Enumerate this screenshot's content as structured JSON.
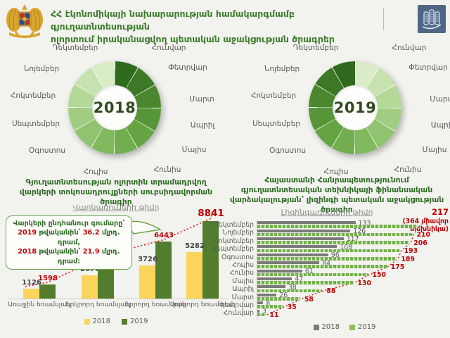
{
  "header": {
    "title_line1": "ՀՀ էկոնոմիկայի նախարարության համակարգմամբ գյուղատնտեսության",
    "title_line2": "ոլորտում իրականացվող պետական աջակցության ծրագրեր",
    "coat_of_arms_icon": "armenia-coat-of-arms",
    "logo_icon": "ministry-building-logo"
  },
  "months": [
    "Հունվար",
    "Փետրվար",
    "Մարտ",
    "Ապրիլ",
    "Մայիս",
    "Հունիս",
    "Հուլիս",
    "Օգոստոս",
    "Սեպտեմբեր",
    "Հոկտեմբեր",
    "Նոյեմբեր",
    "Դեկտեմբեր"
  ],
  "donuts": [
    {
      "year": "2018",
      "gradient": "dark-to-light"
    },
    {
      "year": "2019",
      "gradient": "light-to-dark"
    }
  ],
  "left_section": {
    "caption": "Գյուղատնտեսության ոլորտին տրամադրվող վարկերի տոկոսադրույքների սուբսիդավորման ծրագիր",
    "chart_title": "Վարկառուների թիվը",
    "callout": {
      "title": "Վարկերի ընդհանուր գումարը՝",
      "rows": [
        {
          "year": "2019",
          "mid": " թվականին՝ ",
          "value": "36.2",
          "tail": " մլրդ. դրամ,"
        },
        {
          "year": "2018",
          "mid": " թվականին՝ ",
          "value": "21.9",
          "tail": " մլրդ. դրամ:"
        }
      ]
    }
  },
  "right_section": {
    "caption": "Հայաստանի Հանրապետությունում գյուղատնտեսական տեխնիկայի ֆինանսական վարձակալության՝ լիզինգի պետական աջակցության ծրագիր",
    "chart_title": "Լիզինգառուների թիվը",
    "annotation_number": "217",
    "annotation_line1": "(364 միավոր",
    "annotation_line2": "տեխնիկա)"
  },
  "colors": {
    "accent_green": "#3c7d2b",
    "red": "#c00000",
    "bar_yellow": "#fbd45a",
    "bar_dark_green": "#527d2e",
    "bar_gray": "#7b7b7b",
    "bar_light_green": "#8fbf59",
    "donut_palette": [
      "#2f6a1d",
      "#3c7826",
      "#4a872f",
      "#579539",
      "#65a343",
      "#72ae4f",
      "#81b95e",
      "#90c370",
      "#a1cd83",
      "#b3d898",
      "#c6e2ae",
      "#d9ecc6"
    ]
  },
  "chart_data": [
    {
      "type": "pie",
      "title": "2018",
      "subtype": "calendar-donut",
      "categories": [
        "Հունվար",
        "Փետրվար",
        "Մարտ",
        "Ապրիլ",
        "Մայիս",
        "Հունիս",
        "Հուլիս",
        "Օգոստոս",
        "Սեպտեմբեր",
        "Հոկտեմբեր",
        "Նոյեմբեր",
        "Դեկտեմբեր"
      ],
      "values": [
        1,
        1,
        1,
        1,
        1,
        1,
        1,
        1,
        1,
        1,
        1,
        1
      ],
      "note": "12 equal segments, green shades dark (Jan) to light (Dec), no numeric labels shown"
    },
    {
      "type": "pie",
      "title": "2019",
      "subtype": "calendar-donut",
      "categories": [
        "Հունվար",
        "Փետրվար",
        "Մարտ",
        "Ապրիլ",
        "Մայիս",
        "Հունիս",
        "Հուլիս",
        "Օգոստոս",
        "Սեպտեմբեր",
        "Հոկտեմբեր",
        "Նոյեմբեր",
        "Դեկտեմբեր"
      ],
      "values": [
        1,
        1,
        1,
        1,
        1,
        1,
        1,
        1,
        1,
        1,
        1,
        1
      ],
      "note": "12 equal segments, green shades light (Jan) to dark (Dec), no numeric labels shown"
    },
    {
      "type": "bar",
      "title": "Վարկառուների թիվը",
      "categories": [
        "Առաջին եռամսյակ",
        "Երկրորդ եռամսյակ",
        "Երրորդ եռամսյակ",
        "Չորրորդ եռամսյակ"
      ],
      "series": [
        {
          "name": "2018",
          "values": [
            1126,
            2677,
            3726,
            5282
          ]
        },
        {
          "name": "2019",
          "values": [
            1598,
            4683,
            6443,
            8841
          ]
        }
      ],
      "legend_position": "bottom",
      "trend_line": "red dotted line over 2019 values",
      "ylim": [
        0,
        9500
      ]
    },
    {
      "type": "bar",
      "orientation": "horizontal",
      "title": "Լիզինգառուների թիվը",
      "categories": [
        "Դեկտեմբեր",
        "Նոյեմբեր",
        "Հոկտեմբեր",
        "Սեպտեմբեր",
        "Օգոստոս",
        "Հուլիս",
        "Հունիս",
        "Մայիս",
        "Ապրիլ",
        "Մարտ",
        "Փետրվար",
        "Հունվար"
      ],
      "series": [
        {
          "name": "2018",
          "values": [
            133,
            126,
            117,
            108,
            96,
            84,
            61,
            47,
            38,
            26,
            8,
            3
          ]
        },
        {
          "name": "2019",
          "values": [
            217,
            210,
            206,
            193,
            189,
            175,
            150,
            130,
            88,
            58,
            35,
            11
          ]
        }
      ],
      "annotation": "217 (364 միավոր տեխնիկա)",
      "legend_position": "bottom",
      "trend_line": "red dotted line over 2019 values",
      "xlim": [
        0,
        230
      ]
    }
  ]
}
